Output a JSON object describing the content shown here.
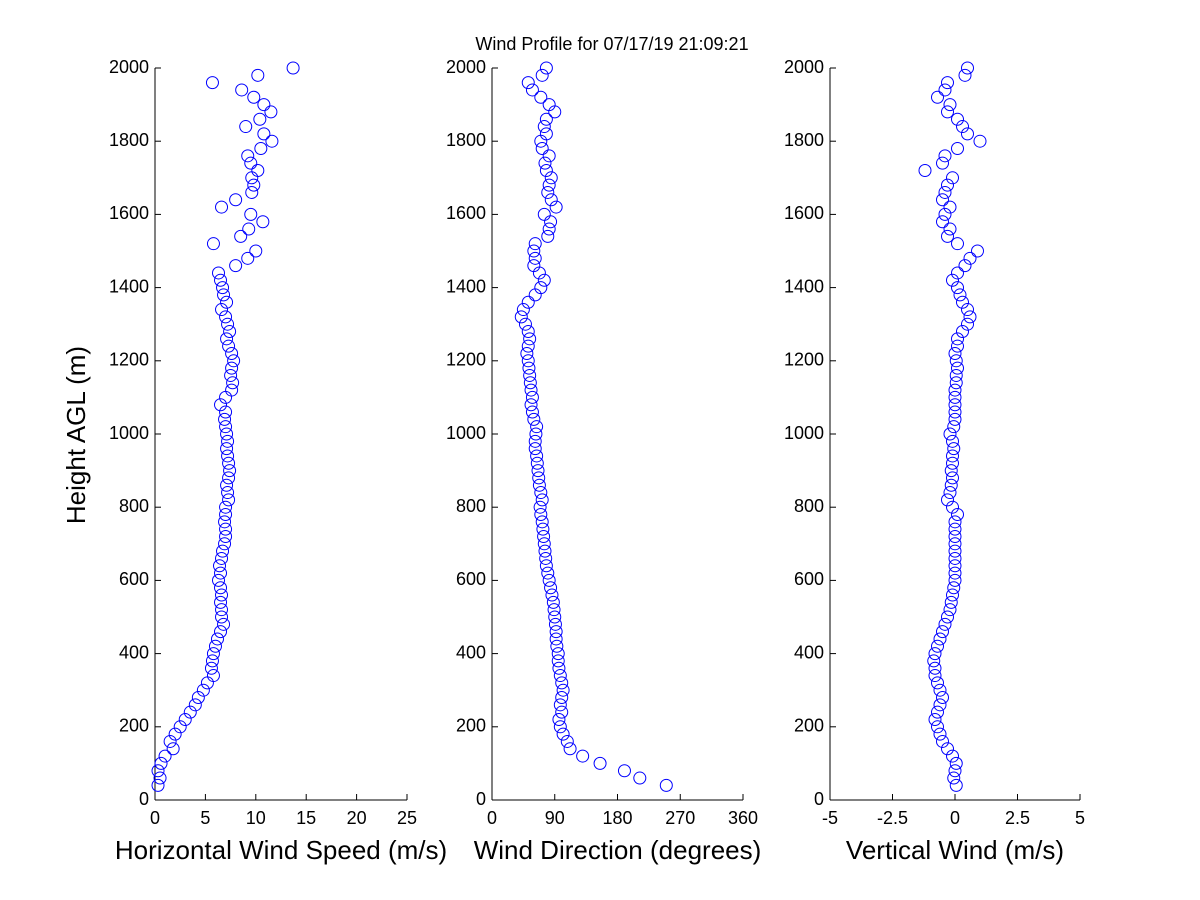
{
  "chart_data": [
    {
      "type": "scatter",
      "xlabel": "Horizontal Wind Speed (m/s)",
      "ylabel": "Height AGL (m)",
      "color": "#0000ff",
      "xlim": [
        0,
        25
      ],
      "xticks": [
        0,
        5,
        10,
        15,
        20,
        25
      ],
      "ylim": [
        0,
        2000
      ],
      "yticks": [
        0,
        200,
        400,
        600,
        800,
        1000,
        1200,
        1400,
        1600,
        1800,
        2000
      ],
      "x": [
        0.3,
        0.5,
        0.3,
        0.6,
        1.0,
        1.8,
        1.5,
        2.0,
        2.5,
        3.0,
        3.5,
        4.0,
        4.3,
        4.8,
        5.2,
        5.8,
        5.6,
        5.7,
        5.8,
        6.0,
        6.2,
        6.5,
        6.8,
        6.6,
        6.6,
        6.5,
        6.6,
        6.5,
        6.3,
        6.5,
        6.4,
        6.6,
        6.7,
        6.9,
        7.0,
        7.0,
        6.9,
        7.0,
        7.0,
        7.3,
        7.2,
        7.1,
        7.3,
        7.4,
        7.3,
        7.2,
        7.1,
        7.2,
        7.1,
        7.0,
        6.9,
        7.0,
        6.5,
        7.0,
        7.6,
        7.7,
        7.5,
        7.6,
        7.8,
        7.6,
        7.3,
        7.1,
        7.4,
        7.2,
        7.0,
        6.6,
        7.1,
        6.8,
        6.7,
        6.5,
        6.3,
        8.0,
        9.2,
        10.0,
        5.8,
        8.5,
        9.3,
        10.7,
        9.5,
        6.6,
        8.0,
        9.6,
        9.8,
        9.6,
        10.2,
        9.5,
        9.2,
        10.5,
        11.6,
        10.8,
        9.0,
        10.4,
        11.5,
        10.8,
        9.8,
        8.6,
        5.7,
        10.2,
        13.7
      ],
      "y": [
        40,
        60,
        80,
        100,
        120,
        140,
        160,
        180,
        200,
        220,
        240,
        260,
        280,
        300,
        320,
        340,
        360,
        380,
        400,
        420,
        440,
        460,
        480,
        500,
        520,
        540,
        560,
        580,
        600,
        620,
        640,
        660,
        680,
        700,
        720,
        740,
        760,
        780,
        800,
        820,
        840,
        860,
        880,
        900,
        920,
        940,
        960,
        980,
        1000,
        1020,
        1040,
        1060,
        1080,
        1100,
        1120,
        1140,
        1160,
        1180,
        1200,
        1220,
        1240,
        1260,
        1280,
        1300,
        1320,
        1340,
        1360,
        1380,
        1400,
        1420,
        1440,
        1460,
        1480,
        1500,
        1520,
        1540,
        1560,
        1580,
        1600,
        1620,
        1640,
        1660,
        1680,
        1700,
        1720,
        1740,
        1760,
        1780,
        1800,
        1820,
        1840,
        1860,
        1880,
        1900,
        1920,
        1940,
        1960,
        1980,
        2000
      ]
    },
    {
      "type": "scatter",
      "title": "Wind Profile for  07/17/19 21:09:21",
      "xlabel": "Wind Direction (degrees)",
      "color": "#0000ff",
      "xlim": [
        0,
        360
      ],
      "xticks": [
        0,
        90,
        180,
        270,
        360
      ],
      "ylim": [
        0,
        2000
      ],
      "yticks": [
        0,
        200,
        400,
        600,
        800,
        1000,
        1200,
        1400,
        1600,
        1800,
        2000
      ],
      "x": [
        250,
        212,
        190,
        155,
        130,
        112,
        108,
        102,
        98,
        96,
        100,
        98,
        100,
        102,
        100,
        98,
        96,
        95,
        95,
        93,
        92,
        92,
        91,
        90,
        89,
        88,
        86,
        84,
        82,
        80,
        78,
        77,
        76,
        75,
        74,
        73,
        72,
        70,
        69,
        72,
        70,
        68,
        67,
        66,
        65,
        64,
        62,
        62,
        63,
        64,
        60,
        58,
        56,
        58,
        56,
        55,
        54,
        53,
        52,
        50,
        52,
        54,
        52,
        48,
        42,
        45,
        52,
        62,
        70,
        75,
        68,
        60,
        62,
        60,
        62,
        80,
        82,
        84,
        75,
        92,
        85,
        80,
        82,
        85,
        78,
        76,
        82,
        72,
        70,
        78,
        75,
        78,
        90,
        82,
        70,
        58,
        52,
        72,
        78
      ],
      "y": [
        40,
        60,
        80,
        100,
        120,
        140,
        160,
        180,
        200,
        220,
        240,
        260,
        280,
        300,
        320,
        340,
        360,
        380,
        400,
        420,
        440,
        460,
        480,
        500,
        520,
        540,
        560,
        580,
        600,
        620,
        640,
        660,
        680,
        700,
        720,
        740,
        760,
        780,
        800,
        820,
        840,
        860,
        880,
        900,
        920,
        940,
        960,
        980,
        1000,
        1020,
        1040,
        1060,
        1080,
        1100,
        1120,
        1140,
        1160,
        1180,
        1200,
        1220,
        1240,
        1260,
        1280,
        1300,
        1320,
        1340,
        1360,
        1380,
        1400,
        1420,
        1440,
        1460,
        1480,
        1500,
        1520,
        1540,
        1560,
        1580,
        1600,
        1620,
        1640,
        1660,
        1680,
        1700,
        1720,
        1740,
        1760,
        1780,
        1800,
        1820,
        1840,
        1860,
        1880,
        1900,
        1920,
        1940,
        1960,
        1980,
        2000
      ]
    },
    {
      "type": "scatter",
      "xlabel": "Vertical Wind (m/s)",
      "color": "#0000ff",
      "xlim": [
        -5,
        5
      ],
      "xticks": [
        -5,
        -2.5,
        0,
        2.5,
        5
      ],
      "ylim": [
        0,
        2000
      ],
      "yticks": [
        0,
        200,
        400,
        600,
        800,
        1000,
        1200,
        1400,
        1600,
        1800,
        2000
      ],
      "x": [
        0.05,
        -0.05,
        0,
        0.05,
        -0.1,
        -0.3,
        -0.5,
        -0.6,
        -0.7,
        -0.8,
        -0.7,
        -0.6,
        -0.5,
        -0.6,
        -0.7,
        -0.8,
        -0.8,
        -0.85,
        -0.8,
        -0.7,
        -0.6,
        -0.5,
        -0.4,
        -0.3,
        -0.2,
        -0.15,
        -0.1,
        -0.05,
        0,
        0,
        0,
        0,
        0,
        0,
        0,
        0,
        0,
        0.1,
        -0.1,
        -0.3,
        -0.2,
        -0.15,
        -0.1,
        -0.15,
        -0.1,
        -0.1,
        -0.05,
        -0.1,
        -0.2,
        -0.05,
        0,
        0,
        0,
        0,
        0,
        0.05,
        0.05,
        0.1,
        0.05,
        0,
        0.1,
        0.1,
        0.3,
        0.5,
        0.6,
        0.5,
        0.3,
        0.2,
        0.1,
        -0.1,
        0.1,
        0.4,
        0.6,
        0.9,
        0.1,
        -0.3,
        -0.2,
        -0.5,
        -0.4,
        -0.2,
        -0.5,
        -0.4,
        -0.3,
        -0.1,
        -1.2,
        -0.5,
        -0.4,
        0.1,
        1.0,
        0.5,
        0.3,
        0.1,
        -0.3,
        -0.2,
        -0.7,
        -0.4,
        -0.3,
        0.4,
        0.5
      ],
      "y": [
        40,
        60,
        80,
        100,
        120,
        140,
        160,
        180,
        200,
        220,
        240,
        260,
        280,
        300,
        320,
        340,
        360,
        380,
        400,
        420,
        440,
        460,
        480,
        500,
        520,
        540,
        560,
        580,
        600,
        620,
        640,
        660,
        680,
        700,
        720,
        740,
        760,
        780,
        800,
        820,
        840,
        860,
        880,
        900,
        920,
        940,
        960,
        980,
        1000,
        1020,
        1040,
        1060,
        1080,
        1100,
        1120,
        1140,
        1160,
        1180,
        1200,
        1220,
        1240,
        1260,
        1280,
        1300,
        1320,
        1340,
        1360,
        1380,
        1400,
        1420,
        1440,
        1460,
        1480,
        1500,
        1520,
        1540,
        1560,
        1580,
        1600,
        1620,
        1640,
        1660,
        1680,
        1700,
        1720,
        1740,
        1760,
        1780,
        1800,
        1820,
        1840,
        1860,
        1880,
        1900,
        1920,
        1940,
        1960,
        1980,
        2000
      ]
    }
  ]
}
